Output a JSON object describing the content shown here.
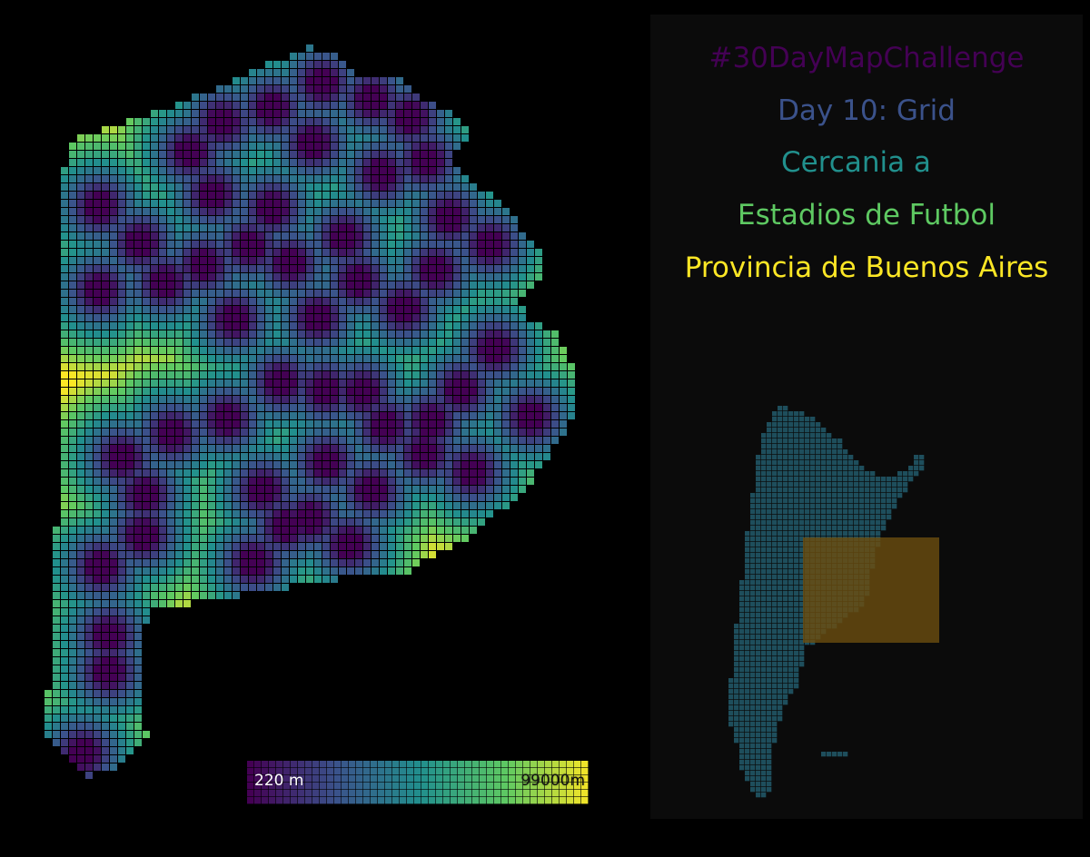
{
  "title": {
    "line1": "#30DayMapChallenge",
    "line2": "Day 10: Grid",
    "line3": "Cercania a",
    "line4": "Estadios de Futbol",
    "line5": "Provincia de Buenos Aires"
  },
  "title_colors": {
    "line1": "#440154",
    "line2": "#3b528b",
    "line3": "#21908d",
    "line4": "#5ec962",
    "line5": "#fde725"
  },
  "legend": {
    "min_label": "220 m",
    "max_label": "99000m",
    "min_value_m": 220,
    "max_value_m": 99000,
    "colormap": [
      "#440154",
      "#3b528b",
      "#21908d",
      "#5ec962",
      "#fde725"
    ]
  },
  "map": {
    "region": "Provincia de Buenos Aires",
    "grid_color": "#000000"
  },
  "inset": {
    "country_color": "#1e4e5c",
    "highlight_color": "#6b4d0f",
    "highlight_opacity": 0.8
  }
}
